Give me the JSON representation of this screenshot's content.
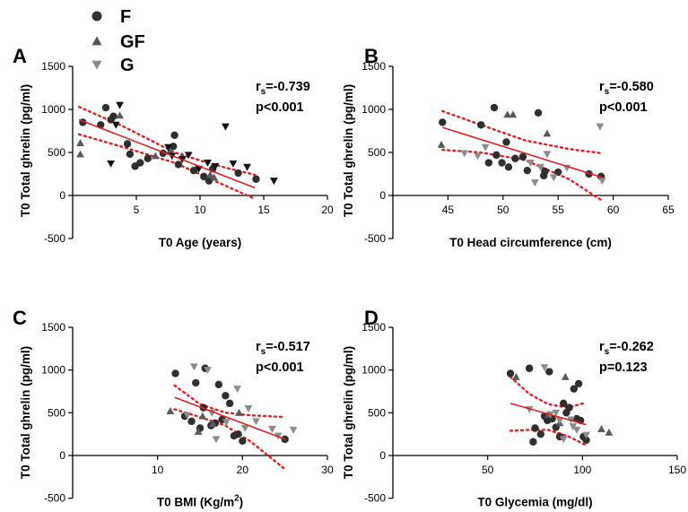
{
  "legend": [
    {
      "label": "F",
      "shape": "circle",
      "color": "#333333"
    },
    {
      "label": "GF",
      "shape": "triangle-up",
      "color": "#555555"
    },
    {
      "label": "G",
      "shape": "triangle-down",
      "color": "#8a8a8a"
    }
  ],
  "colors": {
    "regression": "#e02020",
    "points": "#2f2f2f"
  },
  "chart_data": [
    {
      "type": "scatter",
      "panel": "A",
      "xlabel": "T0 Age (years)",
      "ylabel": "T0 Total ghrelin (pg/ml)",
      "xlim": [
        0,
        20
      ],
      "ylim": [
        -500,
        1500
      ],
      "xticks": [
        "5",
        "10",
        "15",
        "20"
      ],
      "yticks": [
        "-500",
        "0",
        "500",
        "1000",
        "1500"
      ],
      "stat_r": "r",
      "stat_sub": "s",
      "stat_val": "=-0.739",
      "stat_p": "p<0.001",
      "fit": {
        "x": [
          0.5,
          14.3
        ],
        "y": [
          880,
          90
        ]
      },
      "ci_upper": [
        [
          0.5,
          1030
        ],
        [
          4,
          800
        ],
        [
          8,
          500
        ],
        [
          11,
          360
        ],
        [
          14.3,
          240
        ]
      ],
      "ci_lower": [
        [
          0.5,
          710
        ],
        [
          4,
          560
        ],
        [
          8,
          380
        ],
        [
          11,
          180
        ],
        [
          14.3,
          -40
        ]
      ],
      "series": [
        {
          "name": "F",
          "x": [
            0.8,
            2.2,
            2.6,
            3.0,
            3.2,
            4.3,
            4.5,
            4.9,
            5.3,
            5.9,
            7.1,
            7.9,
            8.0,
            8.3,
            9.5,
            10.3,
            10.7,
            11.0,
            13.0,
            14.4
          ],
          "y": [
            850,
            820,
            1020,
            880,
            920,
            600,
            480,
            340,
            380,
            430,
            490,
            570,
            700,
            360,
            290,
            220,
            170,
            310,
            260,
            190
          ]
        },
        {
          "name": "GF",
          "x": [
            0.6,
            0.6,
            3.7,
            6.5,
            7.6,
            8.6,
            10.8,
            11.1
          ],
          "y": [
            610,
            480,
            930,
            460,
            510,
            460,
            240,
            210
          ]
        },
        {
          "name": "G",
          "x": [
            3.0,
            3.4,
            3.7,
            7.5,
            7.8,
            8.6,
            9.1,
            9.9,
            10.6,
            11.2,
            12.0,
            12.6,
            13.7,
            15.8
          ],
          "y": [
            370,
            820,
            1050,
            560,
            460,
            420,
            470,
            310,
            380,
            340,
            800,
            370,
            330,
            170
          ]
        }
      ]
    },
    {
      "type": "scatter",
      "panel": "B",
      "xlabel": "T0 Head circumference (cm)",
      "ylabel": "T0 Total ghrelin (pg/ml)",
      "xlim": [
        40,
        65
      ],
      "ylim": [
        -500,
        1500
      ],
      "xticks": [
        "45",
        "50",
        "55",
        "60",
        "65"
      ],
      "yticks": [
        "-500",
        "0",
        "500",
        "1000",
        "1500"
      ],
      "stat_r": "r",
      "stat_sub": "s",
      "stat_val": "=-0.580",
      "stat_p": "p<0.001",
      "fit": {
        "x": [
          44.5,
          59
        ],
        "y": [
          790,
          210
        ]
      },
      "ci_upper": [
        [
          44.5,
          980
        ],
        [
          48,
          820
        ],
        [
          52,
          640
        ],
        [
          56,
          540
        ],
        [
          59,
          490
        ]
      ],
      "ci_lower": [
        [
          44.5,
          530
        ],
        [
          48,
          500
        ],
        [
          52,
          410
        ],
        [
          56,
          190
        ],
        [
          59,
          -60
        ]
      ],
      "series": [
        {
          "name": "F",
          "x": [
            44.5,
            48.0,
            48.7,
            49.2,
            49.4,
            49.9,
            50.3,
            50.5,
            51.1,
            51.8,
            52.2,
            53.2,
            53.7,
            53.8,
            55.0,
            57.8,
            58.9
          ],
          "y": [
            850,
            820,
            380,
            1020,
            470,
            380,
            620,
            330,
            430,
            450,
            290,
            960,
            230,
            280,
            270,
            250,
            220
          ]
        },
        {
          "name": "GF",
          "x": [
            44.4,
            50.4,
            50.9,
            54.0
          ],
          "y": [
            590,
            940,
            940,
            720
          ]
        },
        {
          "name": "G",
          "x": [
            46.5,
            47.7,
            48.4,
            52.5,
            52.9,
            53.4,
            54.0,
            54.6,
            55.8,
            58.8,
            59.0
          ],
          "y": [
            490,
            460,
            560,
            380,
            150,
            330,
            480,
            210,
            320,
            800,
            170
          ]
        }
      ]
    },
    {
      "type": "scatter",
      "panel": "C",
      "xlabel": "T0 BMI (Kg/m",
      "xlabel_sup": "2",
      "xlabel_end": ")",
      "ylabel": "T0 Total ghrelin (pg/ml)",
      "xlim": [
        0,
        30
      ],
      "ylim": [
        -500,
        1500
      ],
      "xticks": [
        "10",
        "20",
        "30"
      ],
      "yticks": [
        "-500",
        "0",
        "500",
        "1000",
        "1500"
      ],
      "stat_r": "r",
      "stat_sub": "s",
      "stat_val": "=-0.517",
      "stat_p": "p<0.001",
      "fit": {
        "x": [
          12,
          25
        ],
        "y": [
          680,
          190
        ]
      },
      "ci_upper": [
        [
          12,
          820
        ],
        [
          15,
          600
        ],
        [
          18,
          500
        ],
        [
          21,
          470
        ],
        [
          25,
          450
        ]
      ],
      "ci_lower": [
        [
          12,
          540
        ],
        [
          15,
          450
        ],
        [
          18,
          350
        ],
        [
          21,
          160
        ],
        [
          25,
          -160
        ]
      ],
      "series": [
        {
          "name": "F",
          "x": [
            12.1,
            13.2,
            14.0,
            14.5,
            15.0,
            15.4,
            15.6,
            16.3,
            16.8,
            17.2,
            17.6,
            18.0,
            18.5,
            19.0,
            19.5,
            20.0,
            25.0
          ],
          "y": [
            960,
            460,
            400,
            850,
            320,
            560,
            1020,
            350,
            380,
            830,
            420,
            700,
            610,
            230,
            250,
            170,
            190
          ]
        },
        {
          "name": "GF",
          "x": [
            11.5,
            14.8,
            15.3,
            16.5,
            19.6
          ],
          "y": [
            520,
            280,
            460,
            370,
            500
          ]
        },
        {
          "name": "G",
          "x": [
            13.5,
            14.3,
            15.9,
            16.4,
            16.9,
            18.1,
            19.4,
            20.3,
            20.7,
            21.6,
            23.5,
            24.2,
            26.0
          ],
          "y": [
            470,
            1040,
            1000,
            500,
            190,
            390,
            780,
            320,
            550,
            400,
            310,
            230,
            300
          ]
        }
      ]
    },
    {
      "type": "scatter",
      "panel": "D",
      "xlabel": "T0 Glycemia (mg/dl)",
      "ylabel": "T0 Total ghrelin (pg/ml)",
      "xlim": [
        0,
        150
      ],
      "ylim": [
        -500,
        1500
      ],
      "xticks": [
        "50",
        "100",
        "150"
      ],
      "yticks": [
        "-500",
        "0",
        "500",
        "1000",
        "1500"
      ],
      "stat_r": "r",
      "stat_sub": "s",
      "stat_val": "=-0.262",
      "stat_p": "p=0.123",
      "fit": {
        "x": [
          62,
          102
        ],
        "y": [
          610,
          360
        ]
      },
      "ci_upper": [
        [
          62,
          920
        ],
        [
          72,
          720
        ],
        [
          82,
          600
        ],
        [
          92,
          560
        ],
        [
          102,
          620
        ]
      ],
      "ci_lower": [
        [
          62,
          290
        ],
        [
          72,
          300
        ],
        [
          82,
          300
        ],
        [
          92,
          230
        ],
        [
          102,
          120
        ]
      ],
      "series": [
        {
          "name": "F",
          "x": [
            62.0,
            72.0,
            74.0,
            75.0,
            78.0,
            80.0,
            81.5,
            82.5,
            84.0,
            86.0,
            88.0,
            90.0,
            91.5,
            93.0,
            95.5,
            97.0,
            98.0,
            99.0,
            100.5,
            102.0
          ],
          "y": [
            960,
            1020,
            160,
            320,
            250,
            460,
            410,
            980,
            430,
            330,
            220,
            610,
            500,
            560,
            780,
            430,
            840,
            410,
            220,
            180
          ]
        },
        {
          "name": "GF",
          "x": [
            65.0,
            82.0,
            88.0,
            91.0,
            110.0,
            114.0
          ],
          "y": [
            920,
            480,
            380,
            920,
            310,
            270
          ]
        },
        {
          "name": "G",
          "x": [
            72.0,
            80.0,
            83.0,
            86.0,
            88.0,
            90.0,
            94.0,
            95.0,
            97.0,
            102.0
          ],
          "y": [
            540,
            1030,
            480,
            500,
            410,
            190,
            420,
            340,
            300,
            240
          ]
        }
      ]
    }
  ]
}
